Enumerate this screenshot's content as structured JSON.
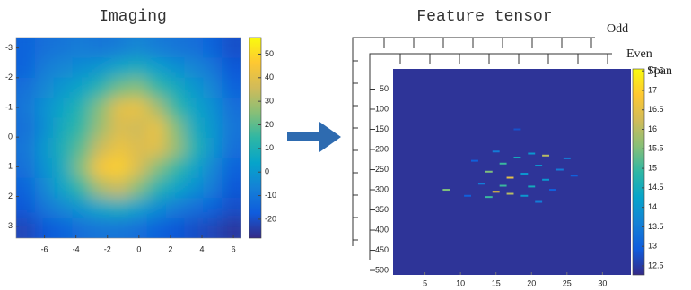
{
  "chart_data": [
    {
      "type": "heatmap",
      "title": "Imaging",
      "xlim": [
        -7.8,
        6.45
      ],
      "ylim": [
        -3.35,
        3.4
      ],
      "y_reversed": true,
      "xticks": [
        -6,
        -4,
        -2,
        0,
        2,
        4,
        6
      ],
      "yticks": [
        -3,
        -2,
        -1,
        0,
        1,
        2,
        3
      ],
      "clim": [
        -28,
        57
      ],
      "cticks": [
        50,
        40,
        30,
        20,
        10,
        0,
        -10,
        -20
      ],
      "colormap": [
        "#352a87",
        "#0f5cdd",
        "#1481d6",
        "#06a4ca",
        "#2eb7a4",
        "#87bf77",
        "#d1bb59",
        "#fec832",
        "#f9fb0e"
      ],
      "values": [
        [
          -15,
          -12,
          -10,
          -8,
          -10,
          -8,
          -5,
          -8,
          -10,
          -12,
          -15,
          -20
        ],
        [
          -15,
          -8,
          -5,
          -3,
          0,
          5,
          8,
          3,
          -2,
          -5,
          -10,
          -18
        ],
        [
          -12,
          -5,
          0,
          5,
          12,
          22,
          25,
          15,
          8,
          0,
          -5,
          -15
        ],
        [
          -10,
          -2,
          5,
          12,
          25,
          40,
          42,
          30,
          15,
          5,
          -2,
          -12
        ],
        [
          -12,
          -3,
          8,
          15,
          28,
          38,
          35,
          42,
          25,
          8,
          0,
          -10
        ],
        [
          -10,
          0,
          10,
          20,
          35,
          42,
          38,
          40,
          28,
          12,
          0,
          -12
        ],
        [
          -12,
          -2,
          8,
          25,
          45,
          48,
          38,
          25,
          15,
          5,
          -5,
          -15
        ],
        [
          -15,
          -5,
          5,
          15,
          30,
          35,
          25,
          12,
          5,
          -2,
          -8,
          -18
        ],
        [
          -18,
          -10,
          -5,
          0,
          5,
          8,
          3,
          -3,
          -8,
          -12,
          -15,
          -20
        ],
        [
          -22,
          -18,
          -15,
          -12,
          -10,
          -10,
          -12,
          -15,
          -18,
          -20,
          -22,
          -25
        ]
      ]
    },
    {
      "type": "sparse-heatmap",
      "title": "Feature tensor",
      "annotations": [
        "Odd",
        "Even",
        "Span"
      ],
      "xlim": [
        0.5,
        34
      ],
      "ylim": [
        0,
        511
      ],
      "y_reversed": true,
      "xticks": [
        5,
        10,
        15,
        20,
        25,
        30
      ],
      "yticks": [
        50,
        100,
        150,
        200,
        250,
        300,
        350,
        400,
        450,
        500
      ],
      "clim": [
        12.27,
        17.55
      ],
      "cticks": [
        17.5,
        17,
        16.5,
        16,
        15.5,
        15,
        14.5,
        14,
        13.5,
        13,
        12.5
      ],
      "colormap": [
        "#352a87",
        "#0f5cdd",
        "#1481d6",
        "#06a4ca",
        "#2eb7a4",
        "#87bf77",
        "#d1bb59",
        "#fec832",
        "#f9fb0e"
      ],
      "background_value": 12.4,
      "x": [
        15,
        20,
        22,
        18,
        25,
        12,
        16,
        21,
        24,
        14,
        19,
        17,
        22,
        26,
        13,
        16,
        20,
        8,
        15,
        17,
        14,
        19,
        23,
        21,
        11,
        18
      ],
      "y": [
        205,
        210,
        215,
        220,
        222,
        228,
        235,
        240,
        250,
        255,
        260,
        270,
        275,
        265,
        285,
        290,
        292,
        300,
        305,
        310,
        318,
        315,
        300,
        330,
        315,
        150
      ],
      "values": [
        13.5,
        14,
        16,
        14.5,
        13.5,
        13,
        15,
        14,
        13.5,
        15.5,
        14,
        16.5,
        14,
        13,
        13.5,
        15,
        14.5,
        15.5,
        17,
        16,
        15,
        14,
        13,
        13.5,
        13,
        12.8
      ]
    }
  ]
}
